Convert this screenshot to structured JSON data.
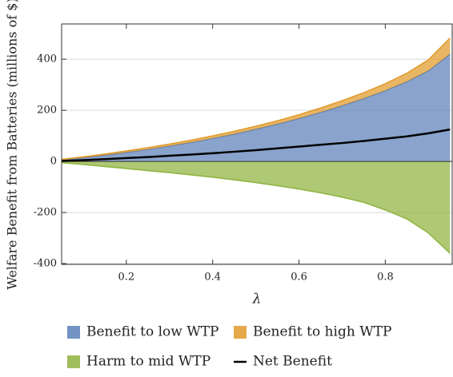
{
  "chart_data": {
    "type": "area",
    "ylabel": "Welfare Benefit from Batteries (millions of $)",
    "xlabel": "λ",
    "x": [
      0.05,
      0.1,
      0.15,
      0.2,
      0.25,
      0.3,
      0.35,
      0.4,
      0.45,
      0.5,
      0.55,
      0.6,
      0.65,
      0.7,
      0.75,
      0.8,
      0.85,
      0.9,
      0.95
    ],
    "series": [
      {
        "name": "Benefit to low WTP",
        "color": "#5b80b8",
        "kind": "area",
        "values": [
          5,
          14,
          24,
          35,
          47,
          60,
          74,
          90,
          107,
          126,
          146,
          168,
          192,
          218,
          246,
          277,
          312,
          355,
          420
        ]
      },
      {
        "name": "Benefit to high WTP",
        "color": "#e09a2a",
        "kind": "area",
        "values": [
          3,
          4,
          5,
          6,
          7,
          8,
          9,
          10,
          11,
          12,
          13,
          15,
          17,
          20,
          23,
          27,
          33,
          43,
          63
        ]
      },
      {
        "name": "Harm to mid WTP",
        "color": "#8fb33f",
        "kind": "area",
        "values": [
          -5,
          -12,
          -20,
          -28,
          -36,
          -44,
          -53,
          -62,
          -72,
          -83,
          -95,
          -108,
          -123,
          -140,
          -160,
          -190,
          -225,
          -280,
          -360
        ]
      },
      {
        "name": "Net Benefit",
        "color": "#000000",
        "kind": "line",
        "values": [
          2,
          5,
          9,
          13,
          17,
          22,
          27,
          32,
          38,
          44,
          51,
          58,
          65,
          72,
          80,
          89,
          98,
          110,
          125
        ]
      }
    ],
    "xlim": [
      0.05,
      0.955
    ],
    "ylim": [
      -403,
      538
    ],
    "xticks": [
      0.2,
      0.4,
      0.6,
      0.8
    ],
    "yticks": [
      -400,
      -200,
      0,
      200,
      400
    ],
    "grid": true
  }
}
